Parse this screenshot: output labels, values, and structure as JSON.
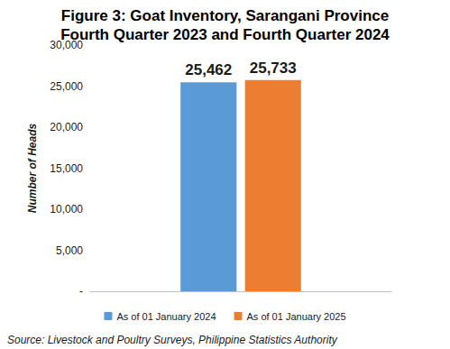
{
  "chart_data": {
    "type": "bar",
    "title": "Figure 3: Goat Inventory, Sarangani Province",
    "subtitle": "Fourth Quarter 2023 and Fourth Quarter 2024",
    "y_label": "Number of Heads",
    "categories": [
      null
    ],
    "series": [
      {
        "name": "As of 01 January 2024",
        "color": "#5B9BD5",
        "values": [
          25462
        ],
        "value_labels": [
          "25,462"
        ]
      },
      {
        "name": "As of 01 January 2025",
        "color": "#ED7D31",
        "values": [
          25733
        ],
        "value_labels": [
          "25,733"
        ]
      }
    ],
    "ylim": [
      0,
      30000
    ],
    "yticks": [
      {
        "value": 0,
        "label": "-"
      },
      {
        "value": 5000,
        "label": "5,000"
      },
      {
        "value": 10000,
        "label": "10,000"
      },
      {
        "value": 15000,
        "label": "15,000"
      },
      {
        "value": 20000,
        "label": "20,000"
      },
      {
        "value": 25000,
        "label": "25,000"
      },
      {
        "value": 30000,
        "label": "30,000"
      }
    ],
    "grid": false,
    "legend": "bottom",
    "data_labels": true,
    "source": "Source: Livestock and Poultry Surveys, Philippine Statistics Authority"
  }
}
